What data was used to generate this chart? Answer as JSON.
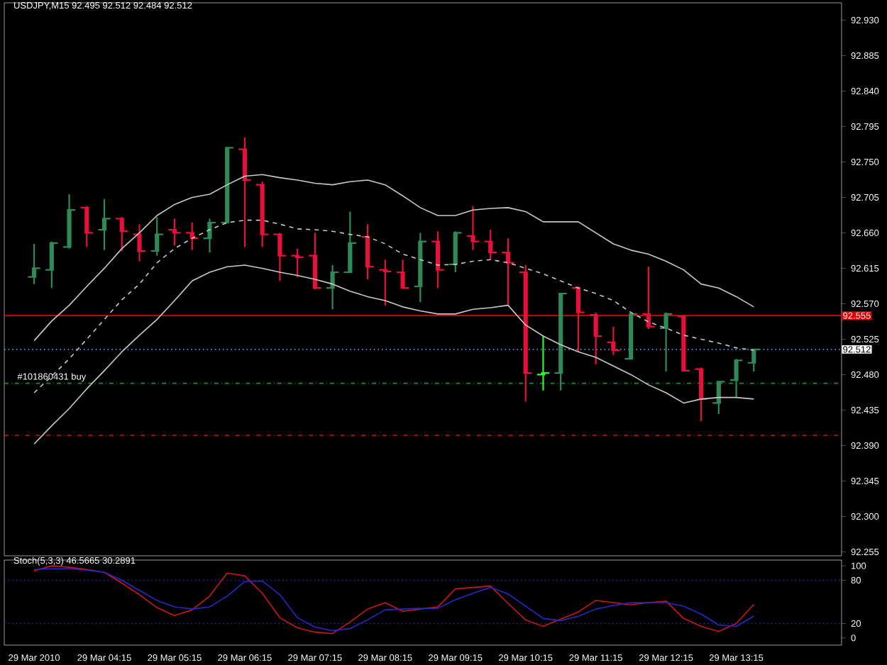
{
  "chart_data": [
    {
      "type": "candlestick",
      "title": "USDJPY,M15  92.495 92.512 92.484 92.512",
      "categories": [
        "29 Mar 2010",
        null,
        null,
        null,
        "29 Mar 04:15",
        null,
        null,
        null,
        "29 Mar 05:15",
        null,
        null,
        null,
        "29 Mar 06:15",
        null,
        null,
        null,
        "29 Mar 07:15",
        null,
        null,
        null,
        "29 Mar 08:15",
        null,
        null,
        null,
        "29 Mar 09:15",
        null,
        null,
        null,
        "29 Mar 10:15",
        null,
        null,
        null,
        "29 Mar 11:15",
        null,
        null,
        null,
        "29 Mar 12:15",
        null,
        null,
        null,
        "29 Mar 13:15",
        null
      ],
      "ohlc": [
        [
          92.604,
          92.646,
          92.595,
          92.615
        ],
        [
          92.613,
          92.649,
          92.59,
          92.647
        ],
        [
          92.642,
          92.709,
          92.64,
          92.689
        ],
        [
          92.692,
          92.694,
          92.642,
          92.66
        ],
        [
          92.664,
          92.703,
          92.638,
          92.678
        ],
        [
          92.678,
          92.68,
          92.637,
          92.662
        ],
        [
          92.658,
          92.671,
          92.624,
          92.637
        ],
        [
          92.637,
          92.68,
          92.631,
          92.658
        ],
        [
          92.664,
          92.678,
          92.644,
          92.66
        ],
        [
          92.66,
          92.673,
          92.638,
          92.653
        ],
        [
          92.653,
          92.678,
          92.635,
          92.673
        ],
        [
          92.673,
          92.768,
          92.673,
          92.768
        ],
        [
          92.766,
          92.781,
          92.642,
          92.727
        ],
        [
          92.721,
          92.725,
          92.642,
          92.658
        ],
        [
          92.658,
          92.66,
          92.599,
          92.631
        ],
        [
          92.631,
          92.64,
          92.604,
          92.629
        ],
        [
          92.631,
          92.66,
          92.588,
          92.59
        ],
        [
          92.59,
          92.619,
          92.563,
          92.61
        ],
        [
          92.61,
          92.687,
          92.61,
          92.647
        ],
        [
          92.655,
          92.671,
          92.601,
          92.617
        ],
        [
          92.613,
          92.626,
          92.568,
          92.611
        ],
        [
          92.61,
          92.626,
          92.59,
          92.59
        ],
        [
          92.592,
          92.66,
          92.572,
          92.649
        ],
        [
          92.649,
          92.662,
          92.59,
          92.613
        ],
        [
          92.62,
          92.662,
          92.61,
          92.66
        ],
        [
          92.656,
          92.694,
          92.638,
          92.649
        ],
        [
          92.649,
          92.664,
          92.626,
          92.635
        ],
        [
          92.635,
          92.653,
          92.568,
          92.622
        ],
        [
          92.61,
          92.619,
          92.446,
          92.482
        ],
        [
          92.48,
          92.529,
          92.46,
          92.482
        ],
        [
          92.482,
          92.583,
          92.46,
          92.583
        ],
        [
          92.59,
          92.592,
          92.509,
          92.559
        ],
        [
          92.556,
          92.559,
          92.493,
          92.529
        ],
        [
          92.521,
          92.541,
          92.505,
          92.511
        ],
        [
          92.5,
          92.559,
          92.5,
          92.557
        ],
        [
          92.557,
          92.617,
          92.538,
          92.541
        ],
        [
          92.539,
          92.559,
          92.484,
          92.557
        ],
        [
          92.554,
          92.554,
          92.484,
          92.485
        ],
        [
          92.487,
          92.489,
          92.421,
          92.449
        ],
        [
          92.444,
          92.471,
          92.43,
          92.471
        ],
        [
          92.473,
          92.5,
          92.451,
          92.498
        ],
        [
          92.495,
          92.512,
          92.484,
          92.512
        ]
      ],
      "colors": [
        "#2e8b57",
        "#2e8b57",
        "#2e8b57",
        "#e8103a",
        "#2e8b57",
        "#e8103a",
        "#e8103a",
        "#2e8b57",
        "#e8103a",
        "#e8103a",
        "#2e8b57",
        "#2e8b57",
        "#e8103a",
        "#e8103a",
        "#e8103a",
        "#e8103a",
        "#e8103a",
        "#2e8b57",
        "#2e8b57",
        "#e8103a",
        "#e8103a",
        "#e8103a",
        "#2e8b57",
        "#e8103a",
        "#2e8b57",
        "#e8103a",
        "#e8103a",
        "#e8103a",
        "#e8103a",
        "#32f032",
        "#2e8b57",
        "#e8103a",
        "#e8103a",
        "#e8103a",
        "#2e8b57",
        "#e8103a",
        "#2e8b57",
        "#e8103a",
        "#e8103a",
        "#2e8b57",
        "#2e8b57",
        "#2e8b57"
      ],
      "series": [
        {
          "type": "line",
          "color": "#c8c8c8",
          "values": [
            92.523,
            92.548,
            92.568,
            92.592,
            92.615,
            92.64,
            92.66,
            92.682,
            92.696,
            92.705,
            92.709,
            92.721,
            92.732,
            92.734,
            92.73,
            92.727,
            92.723,
            92.721,
            92.725,
            92.727,
            92.721,
            92.707,
            92.692,
            92.682,
            92.682,
            92.689,
            92.691,
            92.692,
            92.687,
            92.674,
            92.674,
            92.674,
            92.66,
            92.646,
            92.638,
            92.633,
            92.624,
            92.613,
            92.595,
            92.59,
            92.579,
            92.566
          ]
        },
        {
          "type": "line",
          "color": "#c8c8c8",
          "line_style": "dashed",
          "values": [
            92.457,
            92.478,
            92.5,
            92.525,
            92.55,
            92.575,
            92.595,
            92.622,
            92.64,
            92.653,
            92.664,
            92.673,
            92.676,
            92.676,
            92.671,
            92.665,
            92.664,
            92.662,
            92.658,
            92.655,
            92.646,
            92.633,
            92.626,
            92.619,
            92.62,
            92.624,
            92.626,
            92.622,
            92.615,
            92.608,
            92.599,
            92.59,
            92.583,
            92.574,
            92.559,
            92.547,
            92.539,
            92.53,
            92.525,
            92.52,
            92.514,
            92.511
          ]
        },
        {
          "type": "line",
          "color": "#c8c8c8",
          "values": [
            92.392,
            92.415,
            92.437,
            92.462,
            92.485,
            92.509,
            92.53,
            92.55,
            92.574,
            92.599,
            92.61,
            92.617,
            92.619,
            92.615,
            92.61,
            92.606,
            92.601,
            92.595,
            92.586,
            92.579,
            92.574,
            92.566,
            92.561,
            92.557,
            92.557,
            92.563,
            92.565,
            92.568,
            92.543,
            92.529,
            92.518,
            92.509,
            92.502,
            92.491,
            92.48,
            92.467,
            92.457,
            92.444,
            92.449,
            92.451,
            92.451,
            92.449
          ]
        }
      ],
      "ylim": [
        92.25,
        92.952
      ],
      "yticks": [
        {
          "value": 92.93,
          "label": "92.930"
        },
        {
          "value": 92.885,
          "label": "92.885"
        },
        {
          "value": 92.84,
          "label": "92.840"
        },
        {
          "value": 92.795,
          "label": "92.795"
        },
        {
          "value": 92.75,
          "label": "92.750"
        },
        {
          "value": 92.705,
          "label": "92.705"
        },
        {
          "value": 92.66,
          "label": "92.660"
        },
        {
          "value": 92.615,
          "label": "92.615"
        },
        {
          "value": 92.57,
          "label": "92.570"
        },
        {
          "value": 92.525,
          "label": "92.525"
        },
        {
          "value": 92.48,
          "label": "92.480"
        },
        {
          "value": 92.435,
          "label": "92.435"
        },
        {
          "value": 92.39,
          "label": "92.390"
        },
        {
          "value": 92.345,
          "label": "92.345"
        },
        {
          "value": 92.3,
          "label": "92.300"
        },
        {
          "value": 92.255,
          "label": "92.255"
        }
      ],
      "ref_lines": [
        {
          "axis": "y",
          "value": 92.555,
          "label": "92.555",
          "color": "#e00000",
          "line_style": "solid"
        },
        {
          "axis": "y",
          "value": 92.512,
          "label": "92.512",
          "color": "#6b8fd8",
          "line_style": "dotted"
        },
        {
          "axis": "y",
          "value": 92.469,
          "label": "#101860431 buy",
          "color": "#1e8c1e",
          "line_style": "dashdot"
        },
        {
          "axis": "y",
          "value": 92.403,
          "color": "#d01010",
          "line_style": "dashdot"
        }
      ],
      "tick_labels": "x"
    },
    {
      "type": "line",
      "title": "Stoch(5,3,3) 46.5665 30.2891",
      "tick_labels": "y",
      "categories": [
        null,
        null,
        null,
        null,
        null,
        null,
        null,
        null,
        null,
        null,
        null,
        null,
        null,
        null,
        null,
        null,
        null,
        null,
        null,
        null,
        null,
        null,
        null,
        null,
        null,
        null,
        null,
        null,
        null,
        null,
        null,
        null,
        null,
        null,
        null,
        null,
        null,
        null,
        null,
        null,
        null,
        null
      ],
      "series": [
        {
          "color": "#c81818",
          "values": [
            93,
            100,
            98,
            95,
            91,
            76,
            60,
            42,
            31,
            39,
            58,
            90,
            86,
            62,
            28,
            14,
            8,
            6,
            22,
            40,
            49,
            37,
            40,
            43,
            68,
            70,
            72,
            48,
            25,
            16,
            26,
            36,
            52,
            49,
            46,
            49,
            51,
            27,
            16,
            9,
            20,
            46.5665
          ]
        },
        {
          "color": "#2828c8",
          "values": [
            95,
            96,
            96,
            94,
            91,
            80,
            66,
            52,
            43,
            40,
            43,
            58,
            78,
            79,
            60,
            28,
            15,
            10,
            13,
            25,
            39,
            40,
            41,
            41,
            53,
            62,
            70,
            61,
            44,
            27,
            24,
            30,
            40,
            45,
            49,
            49,
            49,
            44,
            33,
            18,
            16,
            30.2891
          ]
        }
      ],
      "ylim": [
        -10,
        108
      ],
      "yticks": [
        0,
        20,
        80,
        100
      ],
      "ref_lines": [
        {
          "axis": "y",
          "value": 20,
          "color": "#2828c8",
          "line_style": "dotted"
        },
        {
          "axis": "y",
          "value": 80,
          "color": "#2828c8",
          "line_style": "dotted"
        }
      ]
    }
  ]
}
